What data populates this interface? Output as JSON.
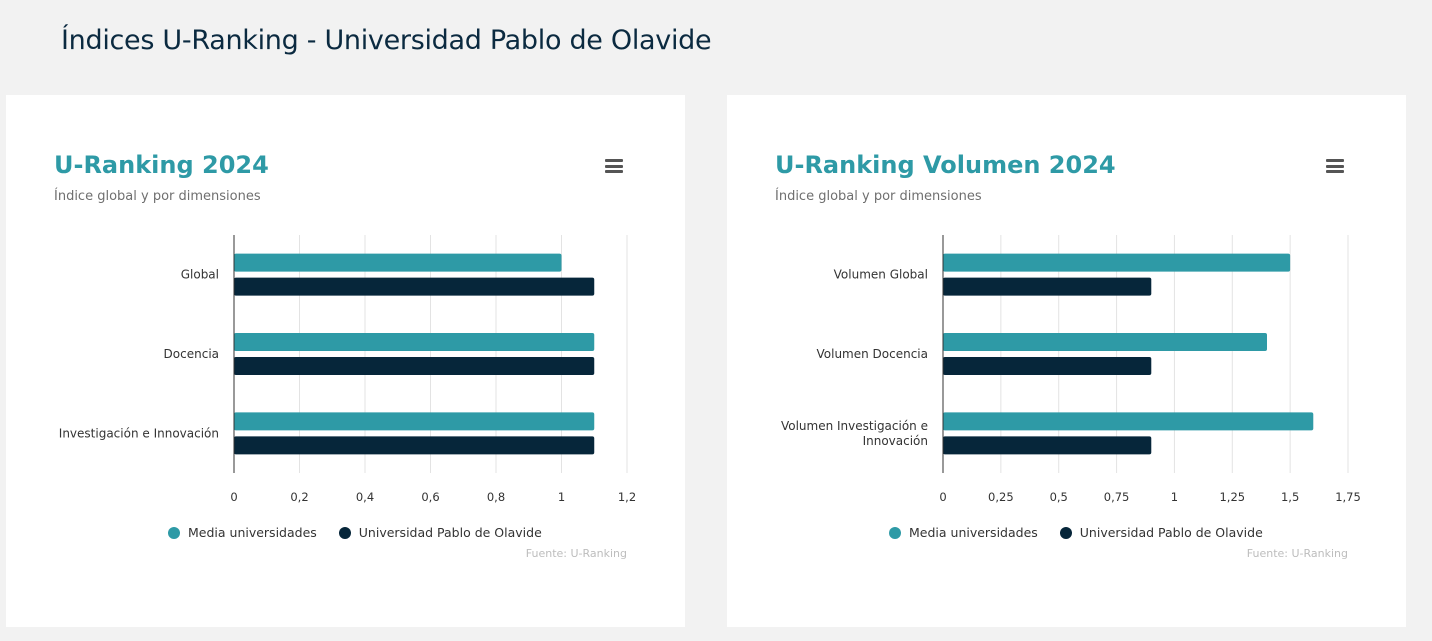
{
  "page": {
    "title": "Índices U-Ranking - Universidad Pablo de Olavide"
  },
  "colors": {
    "media": "#2e9aa6",
    "upo": "#06263a"
  },
  "cards": [
    {
      "title": "U-Ranking 2024",
      "subtitle": "Índice global y por dimensiones",
      "source": "Fuente: U-Ranking",
      "menu_icon": "hamburger-menu-icon",
      "legend": [
        "Media universidades",
        "Universidad Pablo de Olavide"
      ]
    },
    {
      "title": "U-Ranking Volumen 2024",
      "subtitle": "Índice global y por dimensiones",
      "source": "Fuente: U-Ranking",
      "menu_icon": "hamburger-menu-icon",
      "legend": [
        "Media universidades",
        "Universidad Pablo de Olavide"
      ]
    }
  ],
  "chart_data": [
    {
      "type": "bar",
      "orientation": "horizontal",
      "title": "U-Ranking 2024",
      "subtitle": "Índice global y por dimensiones",
      "categories": [
        "Global",
        "Docencia",
        "Investigación e Innovación"
      ],
      "series": [
        {
          "name": "Media universidades",
          "values": [
            1.0,
            1.1,
            1.1
          ]
        },
        {
          "name": "Universidad Pablo de Olavide",
          "values": [
            1.1,
            1.1,
            1.1
          ]
        }
      ],
      "xlim": [
        0,
        1.2
      ],
      "ticks": [
        0,
        0.2,
        0.4,
        0.6,
        0.8,
        1,
        1.2
      ],
      "tick_labels": [
        "0",
        "0,2",
        "0,4",
        "0,6",
        "0,8",
        "1",
        "1,2"
      ],
      "grid": true,
      "legend_position": "bottom"
    },
    {
      "type": "bar",
      "orientation": "horizontal",
      "title": "U-Ranking Volumen 2024",
      "subtitle": "Índice global y por dimensiones",
      "categories": [
        "Volumen Global",
        "Volumen Docencia",
        "Volumen Investigación e Innovación"
      ],
      "category_lines": [
        [
          "Volumen Global"
        ],
        [
          "Volumen Docencia"
        ],
        [
          "Volumen Investigación e",
          "Innovación"
        ]
      ],
      "series": [
        {
          "name": "Media universidades",
          "values": [
            1.5,
            1.4,
            1.6
          ]
        },
        {
          "name": "Universidad Pablo de Olavide",
          "values": [
            0.9,
            0.9,
            0.9
          ]
        }
      ],
      "xlim": [
        0,
        1.75
      ],
      "ticks": [
        0,
        0.25,
        0.5,
        0.75,
        1,
        1.25,
        1.5,
        1.75
      ],
      "tick_labels": [
        "0",
        "0,25",
        "0,5",
        "0,75",
        "1",
        "1,25",
        "1,5",
        "1,75"
      ],
      "grid": true,
      "legend_position": "bottom"
    }
  ]
}
